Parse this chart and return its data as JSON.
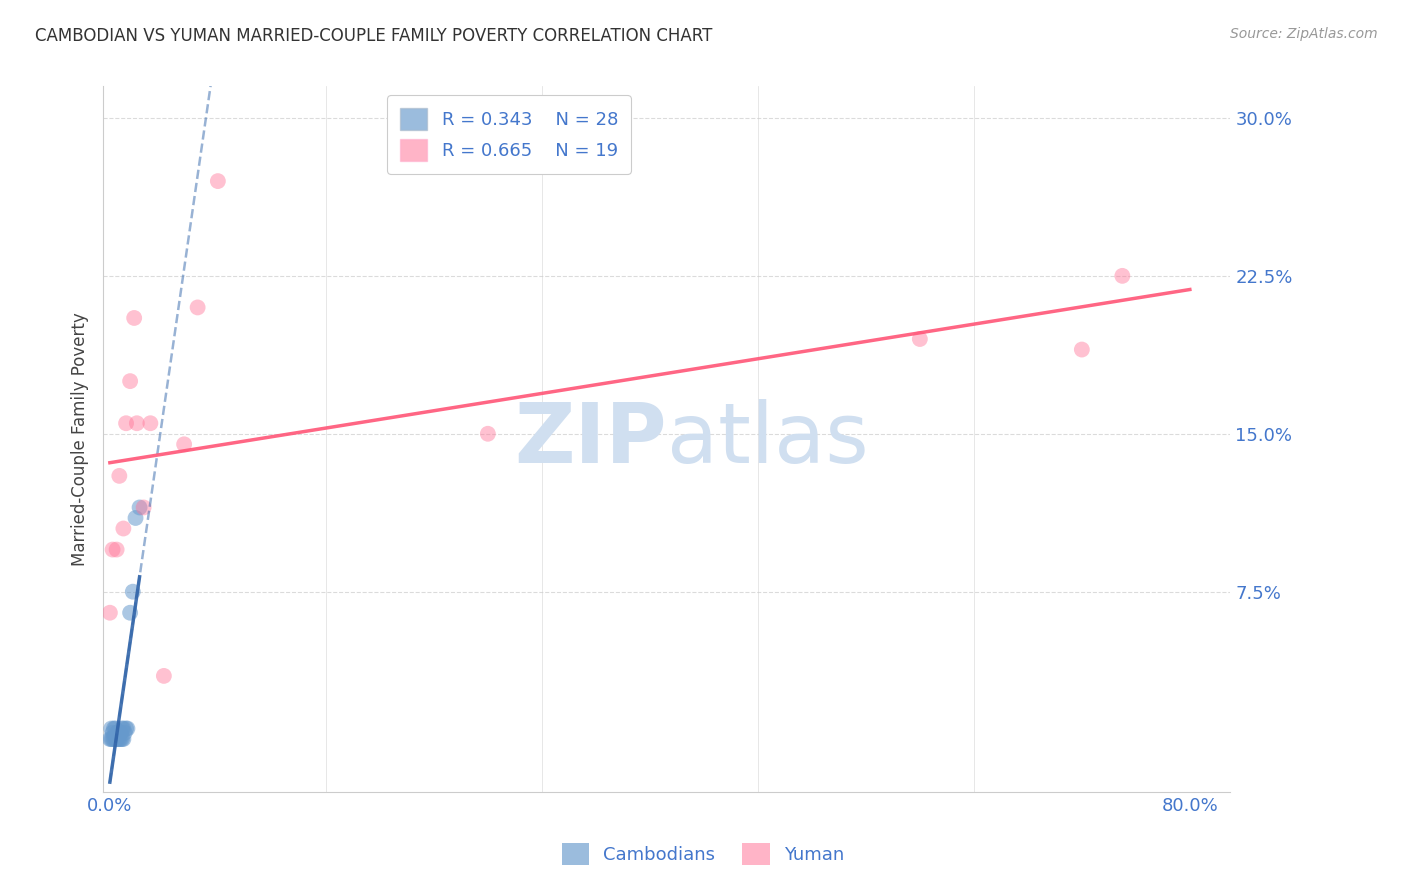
{
  "title": "CAMBODIAN VS YUMAN MARRIED-COUPLE FAMILY POVERTY CORRELATION CHART",
  "source": "Source: ZipAtlas.com",
  "ylabel": "Married-Couple Family Poverty",
  "xmin": -0.005,
  "xmax": 0.83,
  "ymin": -0.02,
  "ymax": 0.315,
  "cambodian_x": [
    0.0,
    0.001,
    0.001,
    0.002,
    0.002,
    0.003,
    0.003,
    0.004,
    0.004,
    0.005,
    0.005,
    0.006,
    0.006,
    0.007,
    0.007,
    0.008,
    0.008,
    0.009,
    0.009,
    0.01,
    0.01,
    0.011,
    0.012,
    0.013,
    0.015,
    0.017,
    0.019,
    0.022
  ],
  "cambodian_y": [
    0.005,
    0.005,
    0.01,
    0.005,
    0.008,
    0.005,
    0.01,
    0.005,
    0.01,
    0.005,
    0.008,
    0.005,
    0.008,
    0.005,
    0.008,
    0.005,
    0.008,
    0.005,
    0.01,
    0.005,
    0.01,
    0.008,
    0.01,
    0.01,
    0.065,
    0.075,
    0.11,
    0.115
  ],
  "yuman_x": [
    0.0,
    0.002,
    0.005,
    0.007,
    0.01,
    0.012,
    0.015,
    0.018,
    0.02,
    0.025,
    0.03,
    0.04,
    0.055,
    0.065,
    0.08,
    0.28,
    0.6,
    0.72,
    0.75
  ],
  "yuman_y": [
    0.065,
    0.095,
    0.095,
    0.13,
    0.105,
    0.155,
    0.175,
    0.205,
    0.155,
    0.115,
    0.155,
    0.035,
    0.145,
    0.21,
    0.27,
    0.15,
    0.195,
    0.19,
    0.225
  ],
  "cambodian_R": 0.343,
  "cambodian_N": 28,
  "yuman_R": 0.665,
  "yuman_N": 19,
  "blue_color": "#6699CC",
  "pink_color": "#FF7799",
  "blue_line_color": "#3366AA",
  "pink_line_color": "#FF5577",
  "axis_label_color": "#4477CC",
  "title_color": "#333333",
  "watermark_color": "#D0DFF0",
  "background_color": "#FFFFFF",
  "grid_color": "#CCCCCC"
}
